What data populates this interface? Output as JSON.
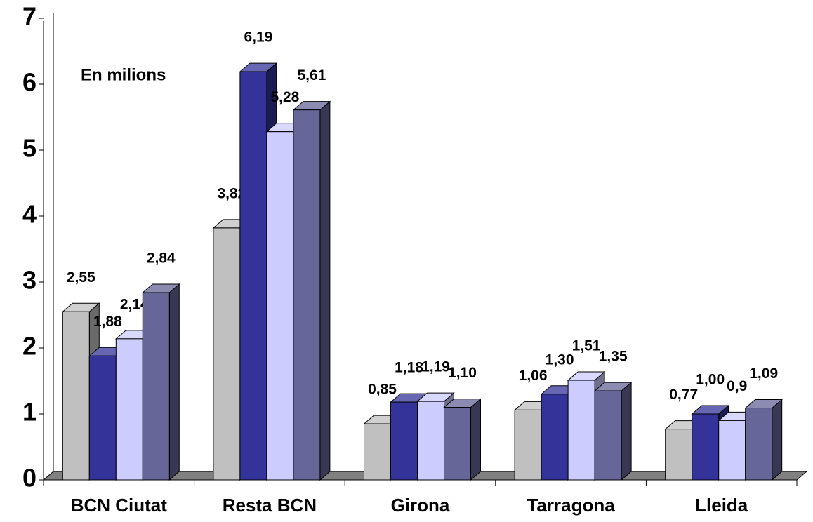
{
  "chart_data": {
    "type": "bar3d",
    "annotation": "En milions",
    "categories": [
      "BCN Ciutat",
      "Resta BCN",
      "Girona",
      "Tarragona",
      "Lleida"
    ],
    "series": [
      {
        "color": "#c0c0c0",
        "values": [
          2.55,
          3.82,
          0.85,
          1.06,
          0.77
        ],
        "value_labels": [
          "2,55",
          "3,82",
          "0,85",
          "1,06",
          "0,77"
        ]
      },
      {
        "color": "#333399",
        "values": [
          1.88,
          6.19,
          1.18,
          1.3,
          1.0
        ],
        "value_labels": [
          "1,88",
          "6,19",
          "1,18",
          "1,30",
          "1,00"
        ]
      },
      {
        "color": "#ccccff",
        "values": [
          2.14,
          5.28,
          1.19,
          1.51,
          0.9
        ],
        "value_labels": [
          "2,14",
          "5,28",
          "1,19",
          "1,51",
          "0,9"
        ]
      },
      {
        "color": "#666699",
        "values": [
          2.84,
          5.61,
          1.1,
          1.35,
          1.09
        ],
        "value_labels": [
          "2,84",
          "5,61",
          "1,10",
          "1,35",
          "1,09"
        ]
      }
    ],
    "ylim": [
      0,
      7
    ],
    "yticks": [
      0,
      1,
      2,
      3,
      4,
      5,
      6,
      7
    ]
  }
}
